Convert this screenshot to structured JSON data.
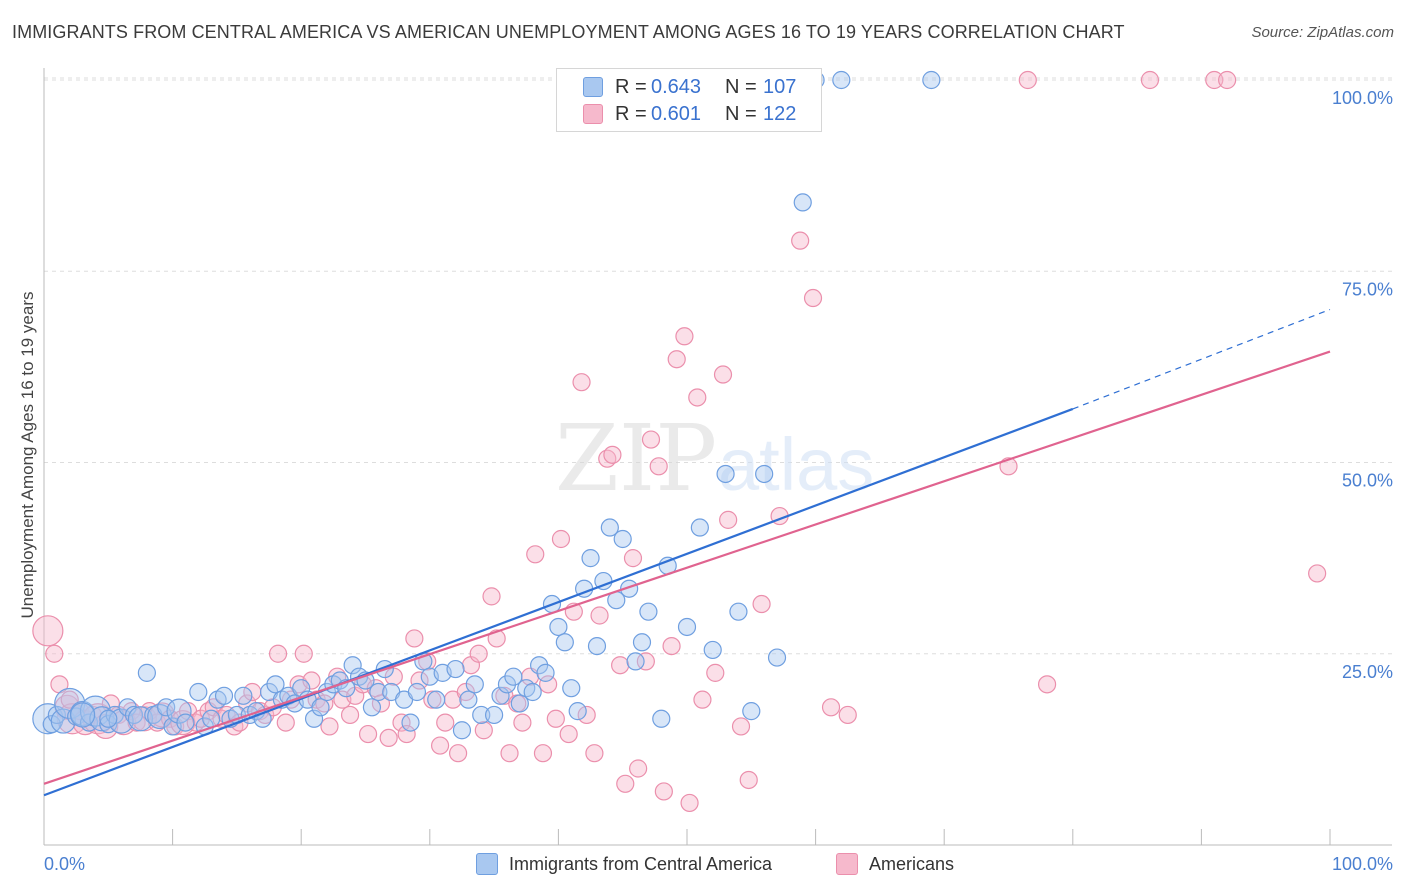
{
  "title": "IMMIGRANTS FROM CENTRAL AMERICA VS AMERICAN UNEMPLOYMENT AMONG AGES 16 TO 19 YEARS CORRELATION CHART",
  "source": "Source: ZipAtlas.com",
  "watermark": {
    "zip": "ZIP",
    "atlas": "atlas"
  },
  "stats": {
    "blue": {
      "r_label": "R =",
      "r": "0.643",
      "n_label": "N =",
      "n": "107"
    },
    "pink": {
      "r_label": "R =",
      "r": "0.601",
      "n_label": "N =",
      "n": "122"
    }
  },
  "legend": {
    "blue": "Immigrants from Central America",
    "pink": "Americans"
  },
  "colors": {
    "blue_fill": "#a9c8f0",
    "blue_stroke": "#6f9fe0",
    "blue_line": "#2f6fd3",
    "pink_fill": "#f6b9cc",
    "pink_stroke": "#eb8fac",
    "pink_line": "#e0638f",
    "axis_label": "#4a7fd0",
    "grid": "#dddddd"
  },
  "chart_data": {
    "type": "scatter",
    "title": "IMMIGRANTS FROM CENTRAL AMERICA VS AMERICAN UNEMPLOYMENT AMONG AGES 16 TO 19 YEARS CORRELATION CHART",
    "xlabel": "",
    "ylabel": "Unemployment Among Ages 16 to 19 years",
    "xlim": [
      0,
      100
    ],
    "ylim": [
      0,
      100
    ],
    "x_tick_labels": [
      "0.0%",
      "100.0%"
    ],
    "y_ticks": [
      25,
      50,
      75,
      100
    ],
    "y_tick_labels": [
      "25.0%",
      "50.0%",
      "75.0%",
      "100.0%"
    ],
    "grid": true,
    "legend_position": "bottom",
    "series": [
      {
        "name": "Immigrants from Central America",
        "color": "#6f9fe0",
        "r": 0.643,
        "n": 107,
        "trend": {
          "x0": 0,
          "y0": 6.5,
          "x1": 80,
          "y1": 57.0,
          "dashed_to_x": 100,
          "dashed_to_y": 70.0
        },
        "points": [
          [
            0.3,
            16.5
          ],
          [
            0.6,
            15.8
          ],
          [
            1.0,
            17.0
          ],
          [
            1.5,
            16.2
          ],
          [
            2.0,
            18.5
          ],
          [
            2.5,
            16.8
          ],
          [
            3.0,
            17.2
          ],
          [
            3.5,
            16.0
          ],
          [
            4.0,
            17.5
          ],
          [
            4.5,
            16.5
          ],
          [
            5.0,
            15.8
          ],
          [
            5.5,
            17.0
          ],
          [
            6.0,
            16.2
          ],
          [
            6.5,
            18.0
          ],
          [
            7.0,
            17.0
          ],
          [
            7.5,
            16.5
          ],
          [
            8.0,
            22.5
          ],
          [
            8.5,
            17.0
          ],
          [
            9.0,
            16.8
          ],
          [
            9.5,
            18.0
          ],
          [
            10.0,
            15.5
          ],
          [
            10.5,
            17.5
          ],
          [
            11.0,
            16.0
          ],
          [
            12.0,
            20.0
          ],
          [
            12.5,
            15.5
          ],
          [
            13.0,
            16.5
          ],
          [
            13.5,
            19.0
          ],
          [
            14.0,
            19.5
          ],
          [
            14.5,
            16.5
          ],
          [
            15.0,
            17.0
          ],
          [
            15.5,
            19.5
          ],
          [
            16.0,
            17.0
          ],
          [
            16.5,
            17.5
          ],
          [
            17.0,
            16.5
          ],
          [
            17.5,
            20.0
          ],
          [
            18.0,
            21.0
          ],
          [
            18.5,
            19.0
          ],
          [
            19.0,
            19.5
          ],
          [
            19.5,
            18.5
          ],
          [
            20.0,
            20.5
          ],
          [
            20.5,
            19.0
          ],
          [
            21.0,
            16.5
          ],
          [
            21.5,
            18.0
          ],
          [
            22.0,
            20.0
          ],
          [
            22.5,
            21.0
          ],
          [
            23.0,
            21.5
          ],
          [
            23.5,
            20.5
          ],
          [
            24.0,
            23.5
          ],
          [
            24.5,
            22.0
          ],
          [
            25.0,
            21.5
          ],
          [
            25.5,
            18.0
          ],
          [
            26.0,
            20.0
          ],
          [
            26.5,
            23.0
          ],
          [
            27.0,
            20.0
          ],
          [
            28.0,
            19.0
          ],
          [
            28.5,
            16.0
          ],
          [
            29.0,
            20.0
          ],
          [
            29.5,
            24.0
          ],
          [
            30.0,
            22.0
          ],
          [
            30.5,
            19.0
          ],
          [
            31.0,
            22.5
          ],
          [
            32.0,
            23.0
          ],
          [
            32.5,
            15.0
          ],
          [
            33.0,
            19.0
          ],
          [
            33.5,
            21.0
          ],
          [
            34.0,
            17.0
          ],
          [
            35.0,
            17.0
          ],
          [
            35.5,
            19.5
          ],
          [
            36.0,
            21.0
          ],
          [
            36.5,
            22.0
          ],
          [
            37.0,
            18.5
          ],
          [
            37.5,
            20.5
          ],
          [
            38.0,
            20.0
          ],
          [
            38.5,
            23.5
          ],
          [
            39.0,
            22.5
          ],
          [
            39.5,
            31.5
          ],
          [
            40.0,
            28.5
          ],
          [
            40.5,
            26.5
          ],
          [
            41.0,
            20.5
          ],
          [
            41.5,
            17.5
          ],
          [
            42.0,
            33.5
          ],
          [
            42.5,
            37.5
          ],
          [
            43.0,
            26.0
          ],
          [
            43.5,
            34.5
          ],
          [
            44.0,
            41.5
          ],
          [
            44.5,
            32.0
          ],
          [
            45.0,
            40.0
          ],
          [
            45.5,
            33.5
          ],
          [
            46.0,
            24.0
          ],
          [
            46.5,
            26.5
          ],
          [
            47.0,
            30.5
          ],
          [
            48.0,
            16.5
          ],
          [
            48.5,
            36.5
          ],
          [
            50.0,
            28.5
          ],
          [
            51.0,
            41.5
          ],
          [
            52.0,
            25.5
          ],
          [
            53.0,
            48.5
          ],
          [
            54.0,
            30.5
          ],
          [
            55.0,
            17.5
          ],
          [
            56.0,
            48.5
          ],
          [
            57.0,
            24.5
          ],
          [
            59.0,
            84.0
          ],
          [
            60.0,
            100.0
          ],
          [
            62.0,
            100.0
          ],
          [
            69.0,
            100.0
          ],
          [
            3.0,
            17.0
          ],
          [
            5.0,
            16.5
          ]
        ]
      },
      {
        "name": "Americans",
        "color": "#eb8fac",
        "r": 0.601,
        "n": 122,
        "trend": {
          "x0": 0,
          "y0": 8.0,
          "x1": 100,
          "y1": 64.5
        },
        "points": [
          [
            0.3,
            28.0
          ],
          [
            0.8,
            25.0
          ],
          [
            1.2,
            21.0
          ],
          [
            1.8,
            18.0
          ],
          [
            2.2,
            16.5
          ],
          [
            2.8,
            17.5
          ],
          [
            3.2,
            16.0
          ],
          [
            3.8,
            17.0
          ],
          [
            4.2,
            16.5
          ],
          [
            4.8,
            15.5
          ],
          [
            5.2,
            18.5
          ],
          [
            5.8,
            17.0
          ],
          [
            6.2,
            16.0
          ],
          [
            6.8,
            17.5
          ],
          [
            7.2,
            16.0
          ],
          [
            7.8,
            16.5
          ],
          [
            8.2,
            17.5
          ],
          [
            8.8,
            16.0
          ],
          [
            9.2,
            17.0
          ],
          [
            9.8,
            16.5
          ],
          [
            10.2,
            15.5
          ],
          [
            10.8,
            16.0
          ],
          [
            11.2,
            17.5
          ],
          [
            11.8,
            16.0
          ],
          [
            12.2,
            16.5
          ],
          [
            12.8,
            17.5
          ],
          [
            13.2,
            18.0
          ],
          [
            13.8,
            16.5
          ],
          [
            14.2,
            17.0
          ],
          [
            14.8,
            15.5
          ],
          [
            15.2,
            16.0
          ],
          [
            15.8,
            18.5
          ],
          [
            16.2,
            20.0
          ],
          [
            16.8,
            17.5
          ],
          [
            17.2,
            17.0
          ],
          [
            17.8,
            18.0
          ],
          [
            18.2,
            25.0
          ],
          [
            18.8,
            16.0
          ],
          [
            19.2,
            19.0
          ],
          [
            19.8,
            21.0
          ],
          [
            20.2,
            25.0
          ],
          [
            20.8,
            21.5
          ],
          [
            21.2,
            19.0
          ],
          [
            21.8,
            18.5
          ],
          [
            22.2,
            15.5
          ],
          [
            22.8,
            22.0
          ],
          [
            23.2,
            19.0
          ],
          [
            23.8,
            17.0
          ],
          [
            24.2,
            19.5
          ],
          [
            24.8,
            21.0
          ],
          [
            25.2,
            14.5
          ],
          [
            25.8,
            20.5
          ],
          [
            26.2,
            18.5
          ],
          [
            26.8,
            14.0
          ],
          [
            27.2,
            22.0
          ],
          [
            27.8,
            16.0
          ],
          [
            28.2,
            14.5
          ],
          [
            28.8,
            27.0
          ],
          [
            29.2,
            21.5
          ],
          [
            29.8,
            24.0
          ],
          [
            30.2,
            19.0
          ],
          [
            30.8,
            13.0
          ],
          [
            31.2,
            16.0
          ],
          [
            31.8,
            19.0
          ],
          [
            32.2,
            12.0
          ],
          [
            32.8,
            20.0
          ],
          [
            33.2,
            23.5
          ],
          [
            33.8,
            25.0
          ],
          [
            34.2,
            15.0
          ],
          [
            34.8,
            32.5
          ],
          [
            35.2,
            27.0
          ],
          [
            35.8,
            19.5
          ],
          [
            36.2,
            12.0
          ],
          [
            36.8,
            18.5
          ],
          [
            37.2,
            16.0
          ],
          [
            37.8,
            22.0
          ],
          [
            38.2,
            38.0
          ],
          [
            38.8,
            12.0
          ],
          [
            39.2,
            21.0
          ],
          [
            39.8,
            16.5
          ],
          [
            40.2,
            40.0
          ],
          [
            40.8,
            14.5
          ],
          [
            41.2,
            30.5
          ],
          [
            41.8,
            60.5
          ],
          [
            42.2,
            17.0
          ],
          [
            42.8,
            12.0
          ],
          [
            43.2,
            30.0
          ],
          [
            43.8,
            50.5
          ],
          [
            44.2,
            51.0
          ],
          [
            44.8,
            23.5
          ],
          [
            45.2,
            8.0
          ],
          [
            45.8,
            37.5
          ],
          [
            46.2,
            10.0
          ],
          [
            46.8,
            24.0
          ],
          [
            47.2,
            53.0
          ],
          [
            47.8,
            49.5
          ],
          [
            48.2,
            7.0
          ],
          [
            48.8,
            26.0
          ],
          [
            49.2,
            63.5
          ],
          [
            49.8,
            66.5
          ],
          [
            50.2,
            5.5
          ],
          [
            50.8,
            58.5
          ],
          [
            51.2,
            19.0
          ],
          [
            52.2,
            22.5
          ],
          [
            52.8,
            61.5
          ],
          [
            53.2,
            42.5
          ],
          [
            54.2,
            15.5
          ],
          [
            54.8,
            8.5
          ],
          [
            55.8,
            31.5
          ],
          [
            57.2,
            43.0
          ],
          [
            58.8,
            79.0
          ],
          [
            59.8,
            71.5
          ],
          [
            61.2,
            18.0
          ],
          [
            62.5,
            17.0
          ],
          [
            75.0,
            49.5
          ],
          [
            76.5,
            100.0
          ],
          [
            78.0,
            21.0
          ],
          [
            86.0,
            100.0
          ],
          [
            91.0,
            100.0
          ],
          [
            92.0,
            100.0
          ],
          [
            99.0,
            35.5
          ],
          [
            2.0,
            19.0
          ]
        ]
      }
    ]
  }
}
